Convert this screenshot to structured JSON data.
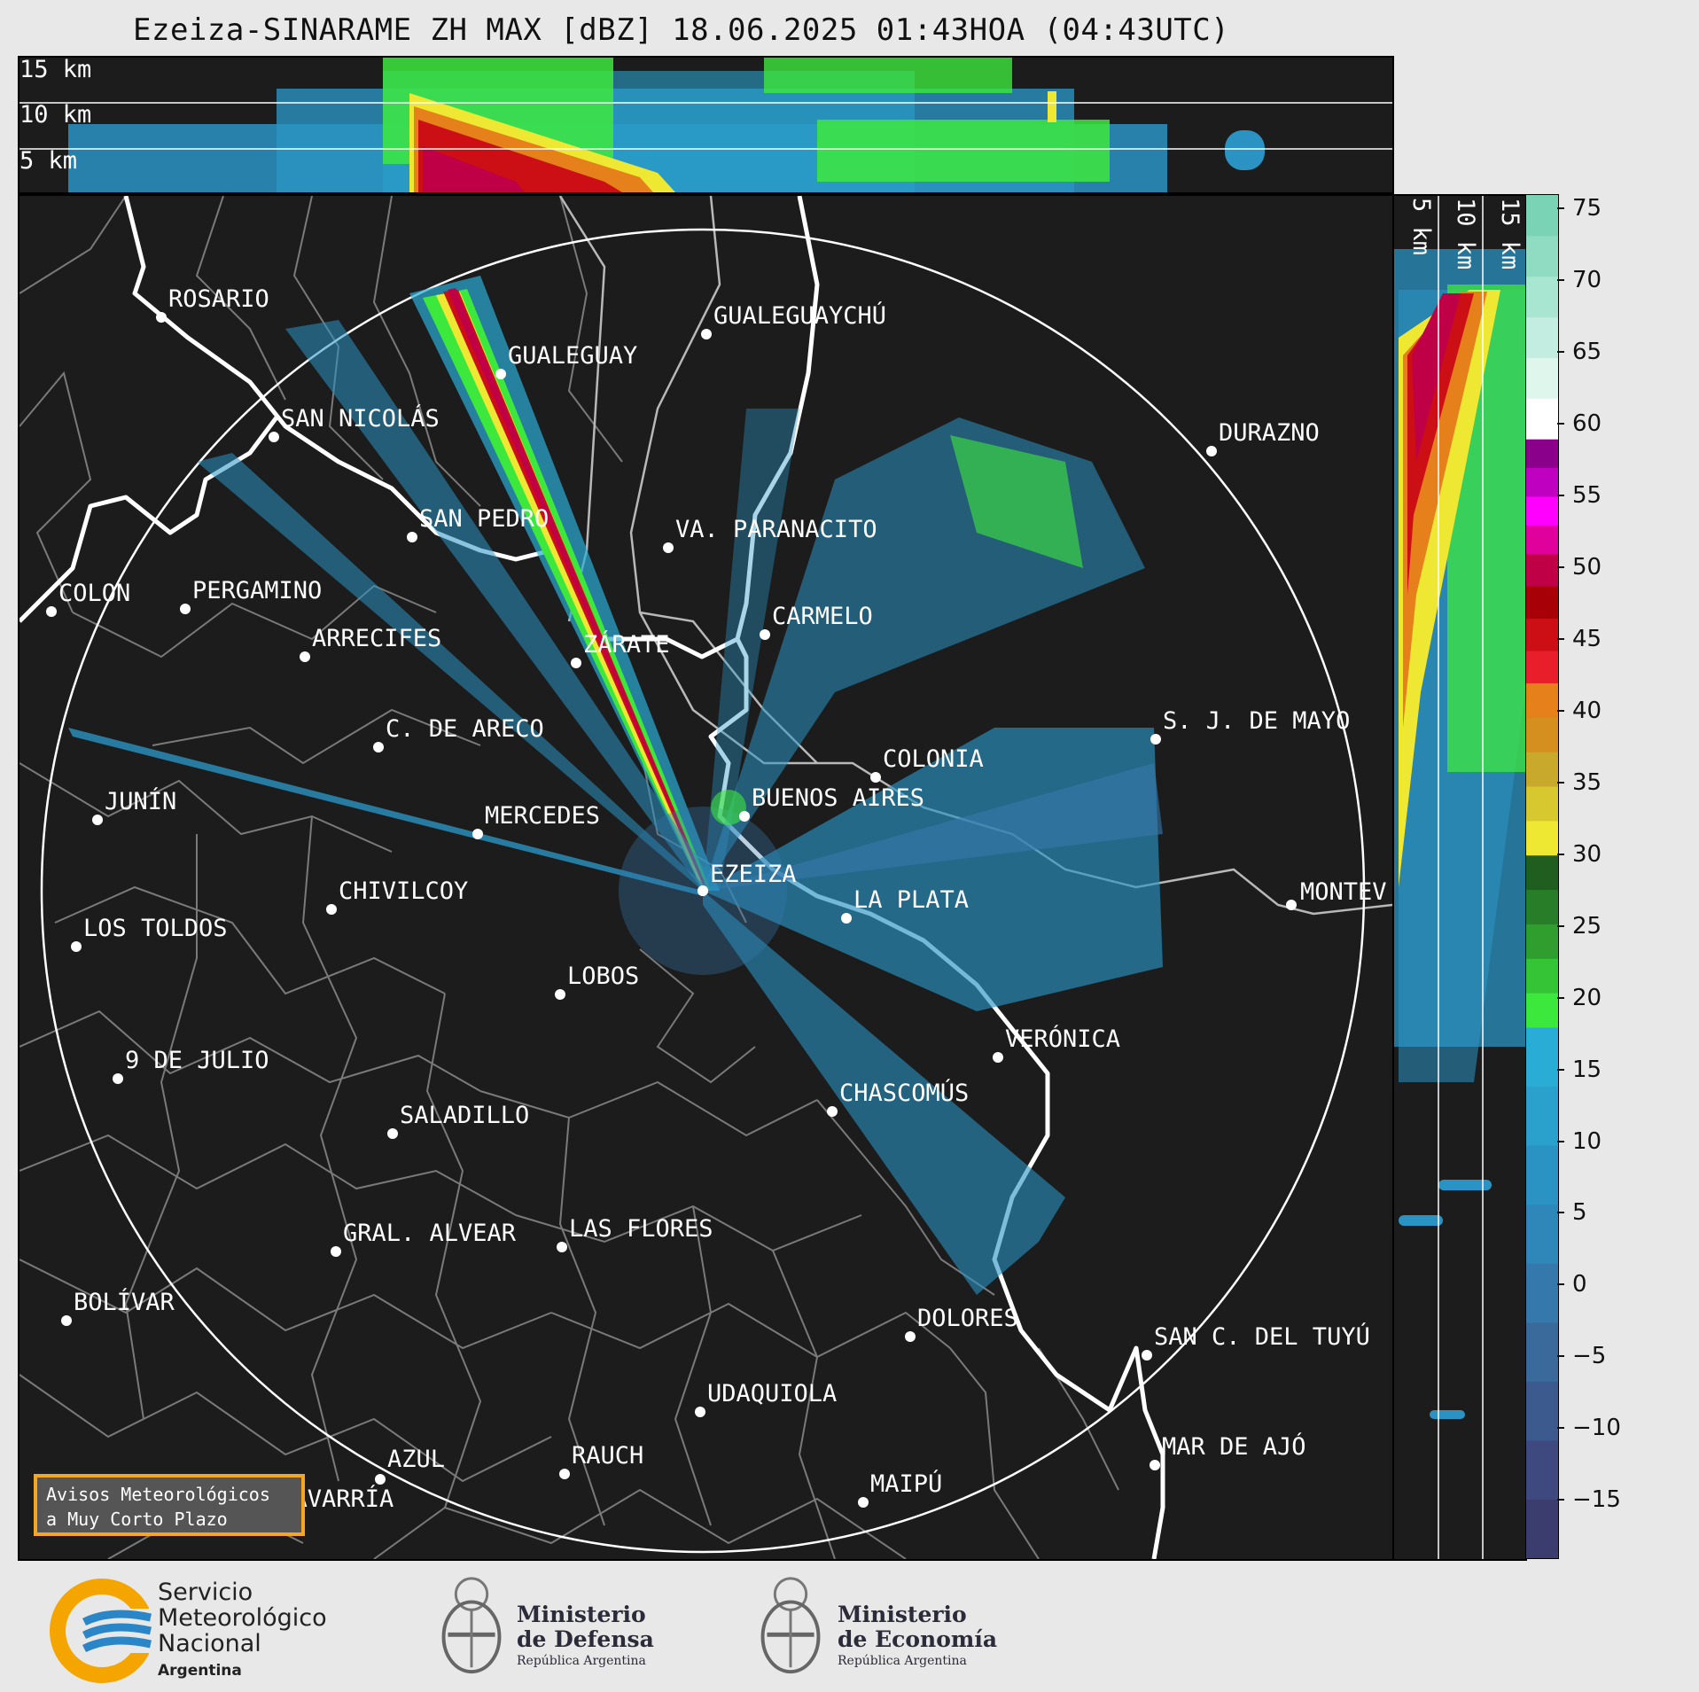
{
  "title": "Ezeiza-SINARAME ZH MAX [dBZ] 18.06.2025 01:43HOA (04:43UTC)",
  "top_panel": {
    "height_labels": [
      "15 km",
      "10 km",
      "5 km"
    ]
  },
  "side_panel": {
    "height_labels": [
      "5 km",
      "10 km",
      "15 km"
    ]
  },
  "colorbar": {
    "ticks": [
      "75",
      "70",
      "65",
      "60",
      "55",
      "50",
      "45",
      "40",
      "35",
      "30",
      "25",
      "20",
      "15",
      "10",
      "5",
      "0",
      "−5",
      "−10",
      "−15"
    ],
    "range": [
      -19,
      76
    ],
    "bands": [
      {
        "from": -19,
        "to": 18,
        "colors": [
          "#3b3d6e",
          "#3e4a7f",
          "#3d5a8e",
          "#3a6a9c",
          "#3578ab",
          "#2f86b8",
          "#2b93c3",
          "#2aa0cc",
          "#29acd6"
        ]
      },
      {
        "from": 18,
        "to": 30,
        "colors": [
          "#3de83d",
          "#35c435",
          "#2f9e2f",
          "#287d28",
          "#1f5e1f"
        ]
      },
      {
        "from": 30,
        "to": 42,
        "colors": [
          "#eee833",
          "#d8c830",
          "#c8a92b",
          "#d48f1f",
          "#e5801a"
        ]
      },
      {
        "from": 42,
        "to": 51,
        "colors": [
          "#e81f2a",
          "#cc0f15",
          "#a80007",
          "#bf0046"
        ]
      },
      {
        "from": 51,
        "to": 59,
        "colors": [
          "#e0009c",
          "#ff00ff",
          "#c000c0",
          "#8b008b"
        ]
      },
      {
        "from": 59,
        "to": 76,
        "colors": [
          "#ffffff",
          "#dff6ec",
          "#c2ede0",
          "#a8e6d2",
          "#8fdcc2",
          "#7ad3b4"
        ]
      }
    ]
  },
  "map": {
    "radar_site": "EZEIZA",
    "cities": [
      {
        "name": "ROSARIO"
      },
      {
        "name": "GUALEGUAYCHÚ"
      },
      {
        "name": "GUALEGUAY"
      },
      {
        "name": "SAN NICOLÁS"
      },
      {
        "name": "DURAZNO"
      },
      {
        "name": "SAN PEDRO"
      },
      {
        "name": "VA. PARANACITO"
      },
      {
        "name": "COLON"
      },
      {
        "name": "PERGAMINO"
      },
      {
        "name": "CARMELO"
      },
      {
        "name": "ARRECIFES"
      },
      {
        "name": "ZÁRATE"
      },
      {
        "name": "S. J. DE MAYO"
      },
      {
        "name": "C. DE ARECO"
      },
      {
        "name": "COLONIA"
      },
      {
        "name": "JUNÍN"
      },
      {
        "name": "BUENOS AIRES"
      },
      {
        "name": "MERCEDES"
      },
      {
        "name": "EZEIZA"
      },
      {
        "name": "MONTEVIDEO",
        "shown": "MONTEV"
      },
      {
        "name": "CHIVILCOY"
      },
      {
        "name": "LA PLATA"
      },
      {
        "name": "LOS TOLDOS"
      },
      {
        "name": "LOBOS"
      },
      {
        "name": "VERÓNICA"
      },
      {
        "name": "9 DE JULIO"
      },
      {
        "name": "CHASCOMÚS"
      },
      {
        "name": "SALADILLO"
      },
      {
        "name": "GRAL. ALVEAR"
      },
      {
        "name": "LAS FLORES"
      },
      {
        "name": "BOLÍVAR"
      },
      {
        "name": "DOLORES"
      },
      {
        "name": "SAN C. DEL TUYÚ"
      },
      {
        "name": "UDAQUIOLA"
      },
      {
        "name": "MAR DE AJÓ"
      },
      {
        "name": "AZUL"
      },
      {
        "name": "RAUCH"
      },
      {
        "name": "MAIPÚ"
      },
      {
        "name": "OLAVARRÍA",
        "shown": "OLAVARRÍA"
      }
    ]
  },
  "avisos": {
    "line1": "Avisos Meteorológicos",
    "line2": "a Muy Corto Plazo"
  },
  "footer": {
    "smn": {
      "line1": "Servicio",
      "line2": "Meteorológico",
      "line3": "Nacional",
      "line4": "Argentina"
    },
    "defensa": {
      "line1": "Ministerio",
      "line2": "de Defensa",
      "line3": "República Argentina"
    },
    "economia": {
      "line1": "Ministerio",
      "line2": "de Economía",
      "line3": "República Argentina"
    }
  }
}
